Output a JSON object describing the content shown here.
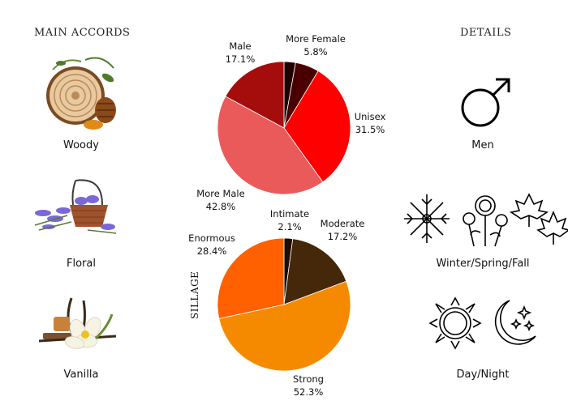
{
  "headings": {
    "main_accords": "MAIN ACCORDS",
    "details": "DETAILS"
  },
  "accords": [
    {
      "label": "Woody",
      "icon": "wood-log-icon"
    },
    {
      "label": "Floral",
      "icon": "lavender-basket-icon"
    },
    {
      "label": "Vanilla",
      "icon": "vanilla-flower-icon"
    }
  ],
  "details": [
    {
      "label": "Men",
      "icon": "male-symbol-icon"
    },
    {
      "label": "Winter/Spring/Fall",
      "icon": "seasons-icon"
    },
    {
      "label": "Day/Night",
      "icon": "sun-moon-icon"
    }
  ],
  "silllage_axis_label": "SILLAGE",
  "chart_data": [
    {
      "type": "pie",
      "slices": [
        {
          "name": "More Female",
          "value": 5.8,
          "label": "5.8%",
          "color": "#4a0000"
        },
        {
          "name": "Unisex",
          "value": 31.5,
          "label": "31.5%",
          "color": "#ff0000"
        },
        {
          "name": "More Male",
          "value": 42.8,
          "label": "42.8%",
          "color": "#ea5a5a"
        },
        {
          "name": "Male",
          "value": 17.1,
          "label": "17.1%",
          "color": "#a50d0d"
        }
      ],
      "start_slice": "Female",
      "female_value": 2.8,
      "female_color": "#200000"
    },
    {
      "type": "pie",
      "ylabel": "SILLAGE",
      "slices": [
        {
          "name": "Intimate",
          "value": 2.1,
          "label": "2.1%",
          "color": "#1e0c02"
        },
        {
          "name": "Moderate",
          "value": 17.2,
          "label": "17.2%",
          "color": "#45270a"
        },
        {
          "name": "Strong",
          "value": 52.3,
          "label": "52.3%",
          "color": "#f58a00"
        },
        {
          "name": "Enormous",
          "value": 28.4,
          "label": "28.4%",
          "color": "#ff6000"
        }
      ]
    }
  ]
}
